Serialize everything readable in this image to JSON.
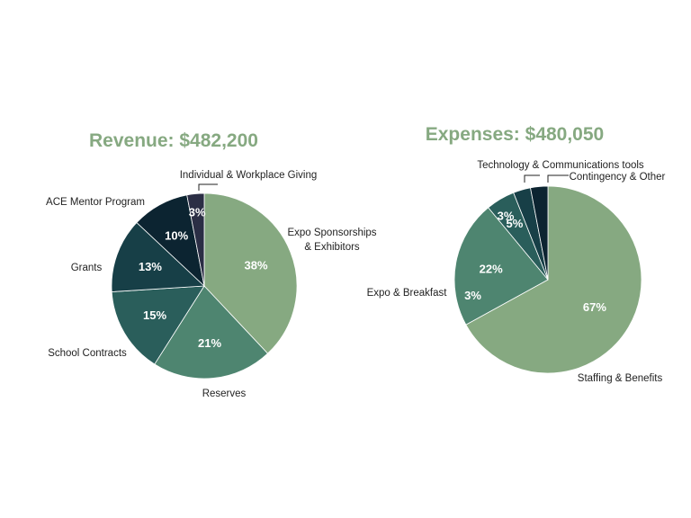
{
  "chart_data": [
    {
      "type": "pie",
      "title": "Revenue: $482,200",
      "title_color": "#86a981",
      "slices": [
        {
          "label": "Expo Sponsorships & Exhibitors",
          "label_lines": [
            "Expo Sponsorships",
            "& Exhibitors"
          ],
          "value": 38,
          "display": "38%",
          "color": "#86a981"
        },
        {
          "label": "Reserves",
          "label_lines": [
            "Reserves"
          ],
          "value": 21,
          "display": "21%",
          "color": "#4e8570"
        },
        {
          "label": "School Contracts",
          "label_lines": [
            "School Contracts"
          ],
          "value": 15,
          "display": "15%",
          "color": "#2a5e5b"
        },
        {
          "label": "Grants",
          "label_lines": [
            "Grants"
          ],
          "value": 13,
          "display": "13%",
          "color": "#173f47"
        },
        {
          "label": "ACE Mentor Program",
          "label_lines": [
            "ACE Mentor Program"
          ],
          "value": 10,
          "display": "10%",
          "color": "#0c2431"
        },
        {
          "label": "Individual & Workplace Giving",
          "label_lines": [
            "Individual & Workplace Giving"
          ],
          "value": 3,
          "display": "3%",
          "color": "#2b2e45"
        }
      ]
    },
    {
      "type": "pie",
      "title": "Expenses: $480,050",
      "title_color": "#86a981",
      "slices": [
        {
          "label": "Staffing & Benefits",
          "label_lines": [
            "Staffing & Benefits"
          ],
          "value": 67,
          "display": "67%",
          "color": "#86a981"
        },
        {
          "label": "Expo & Breakfast",
          "label_lines": [
            "Expo & Breakfast"
          ],
          "value": 22,
          "display": "22%",
          "color": "#4e8570"
        },
        {
          "label": "Technology & Communications tools",
          "label_lines": [
            "Technology & Communications tools"
          ],
          "value": 5,
          "display": "5%",
          "color": "#2a5e5b"
        },
        {
          "label": "Contingency & Other",
          "label_lines": [
            "Contingency & Other"
          ],
          "value": 3,
          "display": "3%",
          "color": "#173f47"
        },
        {
          "label": "",
          "label_lines": [],
          "value": 3,
          "display": "3%",
          "color": "#0c2431"
        }
      ]
    }
  ]
}
